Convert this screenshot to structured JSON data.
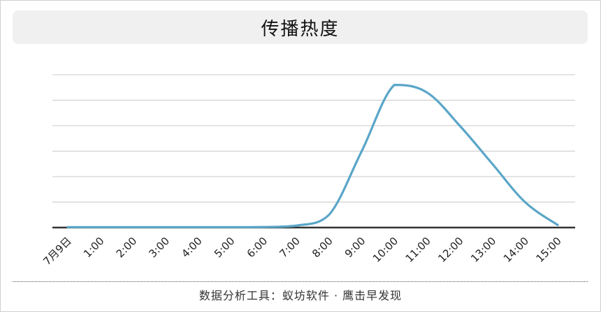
{
  "chart_data": {
    "type": "line",
    "title": "传播热度",
    "x": [
      "7月9日",
      "1:00",
      "2:00",
      "3:00",
      "4:00",
      "5:00",
      "6:00",
      "7:00",
      "8:00",
      "9:00",
      "10:00",
      "11:00",
      "12:00",
      "13:00",
      "14:00",
      "15:00"
    ],
    "series": [
      {
        "name": "",
        "values": [
          0.3,
          0.3,
          0.3,
          0.3,
          0.3,
          0.3,
          0.4,
          1.5,
          10,
          60,
          112,
          106,
          80,
          50,
          20,
          2
        ]
      }
    ],
    "xlabel": "",
    "ylabel": "",
    "ylim": [
      0,
      120
    ],
    "yticks": [
      0,
      20,
      40,
      60,
      80,
      100,
      120
    ],
    "y_tick_labels_shown": false,
    "grid": true,
    "line_color": "#5aa6c8"
  },
  "footer": {
    "text": "数据分析工具：蚁坊软件 · 鹰击早发现"
  }
}
